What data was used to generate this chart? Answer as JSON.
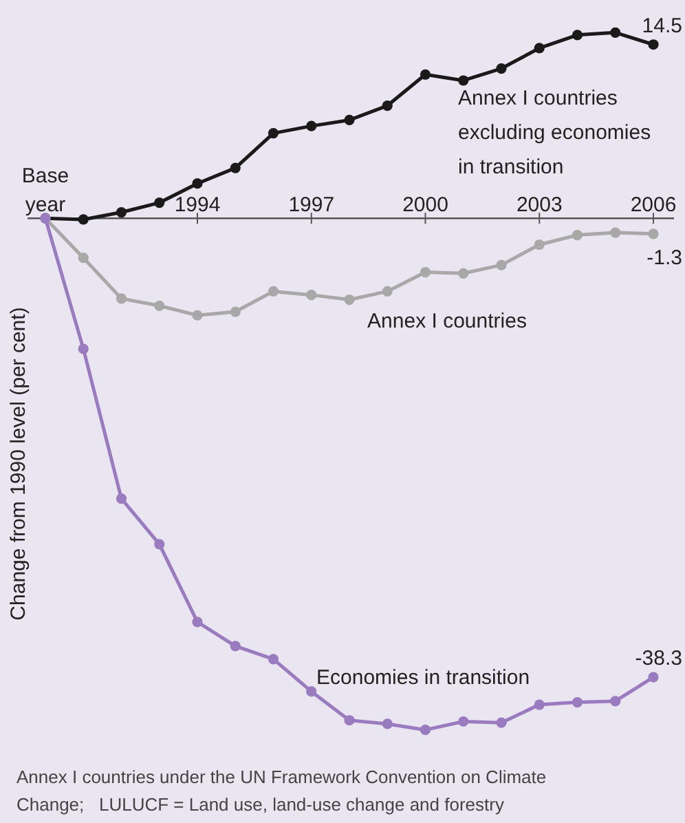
{
  "chart_data": {
    "type": "line",
    "ylabel": "Change from 1990 level (per cent)",
    "categories": [
      "Base year",
      null,
      null,
      null,
      "1994",
      null,
      null,
      "1997",
      null,
      null,
      "2000",
      null,
      null,
      "2003",
      null,
      null,
      "2006"
    ],
    "marker": "circle",
    "line_style": "solid",
    "tick_labels": "x",
    "series": [
      {
        "name": "Annex I countries excluding economies in transition",
        "color": "#1a1a1a",
        "values": [
          0,
          -0.1,
          0.5,
          1.3,
          2.9,
          4.2,
          7.1,
          7.7,
          8.2,
          9.4,
          12.0,
          11.5,
          12.5,
          14.2,
          15.3,
          15.5,
          14.5
        ],
        "value_labels": [
          null,
          null,
          null,
          null,
          null,
          null,
          null,
          null,
          null,
          null,
          null,
          null,
          null,
          null,
          null,
          null,
          "14.5"
        ]
      },
      {
        "name": "Annex I countries",
        "color": "#a8a8a8",
        "values": [
          0,
          -3.3,
          -6.7,
          -7.3,
          -8.1,
          -7.8,
          -6.1,
          -6.4,
          -6.8,
          -6.1,
          -4.5,
          -4.6,
          -3.9,
          -2.2,
          -1.4,
          -1.2,
          -1.3
        ],
        "value_labels": [
          null,
          null,
          null,
          null,
          null,
          null,
          null,
          null,
          null,
          null,
          null,
          null,
          null,
          null,
          null,
          null,
          "-1.3"
        ]
      },
      {
        "name": "Economies in transition",
        "color": "#9b7bbf",
        "values": [
          0,
          -10.9,
          -23.4,
          -27.2,
          -33.7,
          -35.7,
          -36.8,
          -39.5,
          -41.9,
          -42.2,
          -42.7,
          -42.0,
          -42.1,
          -40.6,
          -40.4,
          -40.3,
          -38.3
        ],
        "value_labels": [
          null,
          null,
          null,
          null,
          null,
          null,
          null,
          null,
          null,
          null,
          null,
          null,
          null,
          null,
          null,
          null,
          "-38.3"
        ]
      }
    ],
    "annotations": [
      "Annex I countries under the UN Framework Convention on Climate Change;   LULUCF = Land use, land-use change and forestry"
    ]
  }
}
